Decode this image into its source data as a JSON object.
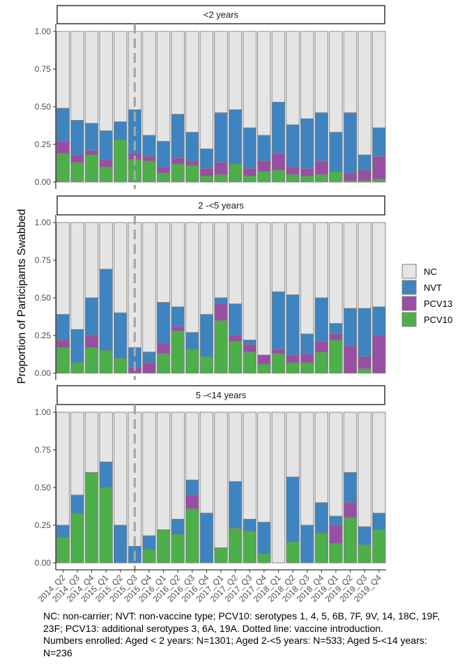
{
  "chart_data": {
    "type": "bar",
    "stacked": true,
    "ylabel": "Proportion of Participants Swabbed",
    "ylim": [
      0,
      1
    ],
    "yticks": [
      "0.00",
      "0.25",
      "0.50",
      "0.75",
      "1.00"
    ],
    "vline_category": "2015_Q3",
    "grid": false,
    "legend_position": "right",
    "categories": [
      "2014_Q2",
      "2014_Q3",
      "2014_Q4",
      "2015_Q1",
      "2015_Q2",
      "2015_Q3",
      "2015_Q4",
      "2016_Q1",
      "2016_Q2",
      "2016_Q3",
      "2016_Q4",
      "2017_Q1",
      "2017_Q2",
      "2017_Q3",
      "2017_Q4",
      "2018_Q1",
      "2018_Q2",
      "2018_Q3",
      "2018_Q4",
      "2019_Q1",
      "2019_Q2",
      "2019_Q3",
      "2019_Q4"
    ],
    "legend": [
      {
        "key": "NC",
        "color": "#e5e5e5"
      },
      {
        "key": "NVT",
        "color": "#3d84c1"
      },
      {
        "key": "PCV13",
        "color": "#984ea3"
      },
      {
        "key": "PCV10",
        "color": "#4daf4a"
      }
    ],
    "panels": [
      {
        "title": "<2 years",
        "series": [
          {
            "name": "PCV10",
            "values": [
              0.19,
              0.13,
              0.18,
              0.1,
              0.28,
              0.15,
              0.14,
              0.06,
              0.12,
              0.11,
              0.04,
              0.05,
              0.12,
              0.04,
              0.07,
              0.08,
              0.05,
              0.04,
              0.05,
              0.07,
              0.01,
              0.01,
              0.02
            ]
          },
          {
            "name": "PCV13",
            "values": [
              0.08,
              0.05,
              0.03,
              0.05,
              0.0,
              0.04,
              0.03,
              0.04,
              0.04,
              0.03,
              0.05,
              0.08,
              0.0,
              0.05,
              0.07,
              0.11,
              0.05,
              0.05,
              0.09,
              0.0,
              0.05,
              0.07,
              0.15
            ]
          },
          {
            "name": "NVT",
            "values": [
              0.22,
              0.23,
              0.18,
              0.19,
              0.12,
              0.29,
              0.14,
              0.17,
              0.29,
              0.19,
              0.13,
              0.33,
              0.36,
              0.27,
              0.17,
              0.34,
              0.28,
              0.33,
              0.32,
              0.26,
              0.4,
              0.1,
              0.19
            ]
          },
          {
            "name": "NC",
            "values": [
              0.51,
              0.59,
              0.61,
              0.66,
              0.6,
              0.52,
              0.69,
              0.73,
              0.55,
              0.67,
              0.78,
              0.54,
              0.52,
              0.64,
              0.69,
              0.47,
              0.62,
              0.58,
              0.54,
              0.67,
              0.54,
              0.82,
              0.64
            ]
          }
        ]
      },
      {
        "title": "2 -<5 years",
        "series": [
          {
            "name": "PCV10",
            "values": [
              0.17,
              0.07,
              0.17,
              0.15,
              0.1,
              0.0,
              0.0,
              0.13,
              0.28,
              0.16,
              0.11,
              0.35,
              0.21,
              0.14,
              0.06,
              0.13,
              0.07,
              0.07,
              0.14,
              0.22,
              0.0,
              0.03,
              0.0
            ]
          },
          {
            "name": "PCV13",
            "values": [
              0.05,
              0.0,
              0.08,
              0.0,
              0.0,
              0.04,
              0.07,
              0.07,
              0.03,
              0.0,
              0.0,
              0.11,
              0.04,
              0.05,
              0.06,
              0.03,
              0.05,
              0.06,
              0.07,
              0.04,
              0.18,
              0.08,
              0.25
            ]
          },
          {
            "name": "NVT",
            "values": [
              0.17,
              0.22,
              0.25,
              0.54,
              0.3,
              0.13,
              0.07,
              0.27,
              0.13,
              0.11,
              0.28,
              0.04,
              0.21,
              0.03,
              0.0,
              0.38,
              0.4,
              0.13,
              0.29,
              0.07,
              0.25,
              0.32,
              0.19
            ]
          },
          {
            "name": "NC",
            "values": [
              0.61,
              0.71,
              0.5,
              0.31,
              0.6,
              0.83,
              0.86,
              0.53,
              0.56,
              0.73,
              0.61,
              0.5,
              0.54,
              0.78,
              0.88,
              0.46,
              0.48,
              0.74,
              0.5,
              0.67,
              0.57,
              0.57,
              0.56
            ]
          }
        ]
      },
      {
        "title": "5 -<14 years",
        "series": [
          {
            "name": "PCV10",
            "values": [
              0.17,
              0.33,
              0.6,
              0.5,
              0.0,
              0.0,
              0.09,
              0.22,
              0.19,
              0.36,
              0.0,
              0.1,
              0.23,
              0.21,
              0.06,
              0.0,
              0.14,
              0.0,
              0.2,
              0.13,
              0.3,
              0.12,
              0.22
            ]
          },
          {
            "name": "PCV13",
            "values": [
              0.0,
              0.0,
              0.0,
              0.0,
              0.0,
              0.0,
              0.0,
              0.0,
              0.0,
              0.09,
              0.0,
              0.0,
              0.0,
              0.0,
              0.0,
              0.0,
              0.0,
              0.0,
              0.0,
              0.12,
              0.1,
              0.0,
              0.0
            ]
          },
          {
            "name": "NVT",
            "values": [
              0.08,
              0.12,
              0.0,
              0.17,
              0.25,
              0.11,
              0.09,
              0.0,
              0.1,
              0.1,
              0.33,
              0.0,
              0.31,
              0.08,
              0.21,
              0.0,
              0.43,
              0.25,
              0.2,
              0.06,
              0.2,
              0.12,
              0.11
            ]
          },
          {
            "name": "NC",
            "values": [
              0.75,
              0.55,
              0.4,
              0.33,
              0.75,
              0.89,
              0.82,
              0.78,
              0.71,
              0.45,
              0.67,
              0.9,
              0.46,
              0.71,
              0.73,
              1.0,
              0.43,
              0.75,
              0.6,
              0.69,
              0.4,
              0.76,
              0.67
            ]
          }
        ]
      }
    ]
  },
  "caption": {
    "line1": "NC: non-carrier; NVT: non-vaccine type; PCV10: serotypes 1, 4, 5, 6B, 7F, 9V, 14, 18C, 19F,",
    "line2": "23F; PCV13: additional serotypes 3, 6A, 19A. Dotted line: vaccine introduction.",
    "line3": "Numbers enrolled: Aged < 2 years: N=1301; Aged 2-<5 years: N=533; Aged 5-<14 years:",
    "line4": "N=236"
  }
}
